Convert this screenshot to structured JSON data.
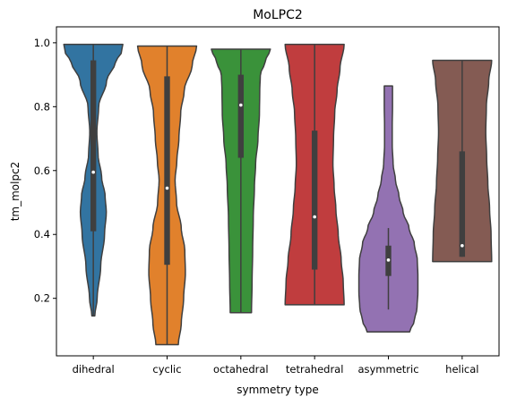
{
  "chart_data": {
    "type": "violin",
    "title": "MoLPC2",
    "xlabel": "symmetry type",
    "ylabel": "tm_molpc2",
    "ylim": [
      0.02,
      1.05
    ],
    "yticks": [
      0.2,
      0.4,
      0.6,
      0.8,
      1.0
    ],
    "ytick_labels": [
      "0.2",
      "0.4",
      "0.6",
      "0.8",
      "1.0"
    ],
    "categories": [
      "dihedral",
      "cyclic",
      "octahedral",
      "tetrahedral",
      "asymmetric",
      "helical"
    ],
    "series": [
      {
        "category": "dihedral",
        "color": "#3274a1",
        "min": 0.145,
        "q1": 0.41,
        "median": 0.595,
        "q3": 0.945,
        "max": 0.995,
        "density": [
          [
            0.145,
            0.05
          ],
          [
            0.2,
            0.13
          ],
          [
            0.3,
            0.25
          ],
          [
            0.4,
            0.38
          ],
          [
            0.47,
            0.44
          ],
          [
            0.52,
            0.4
          ],
          [
            0.58,
            0.28
          ],
          [
            0.65,
            0.16
          ],
          [
            0.72,
            0.12
          ],
          [
            0.8,
            0.18
          ],
          [
            0.88,
            0.45
          ],
          [
            0.94,
            0.75
          ],
          [
            0.97,
            0.95
          ],
          [
            0.995,
            1.0
          ]
        ]
      },
      {
        "category": "cyclic",
        "color": "#e1812c",
        "min": 0.055,
        "q1": 0.305,
        "median": 0.545,
        "q3": 0.895,
        "max": 0.99,
        "density": [
          [
            0.055,
            0.38
          ],
          [
            0.12,
            0.48
          ],
          [
            0.2,
            0.56
          ],
          [
            0.28,
            0.62
          ],
          [
            0.35,
            0.6
          ],
          [
            0.42,
            0.48
          ],
          [
            0.5,
            0.32
          ],
          [
            0.57,
            0.27
          ],
          [
            0.63,
            0.33
          ],
          [
            0.7,
            0.4
          ],
          [
            0.78,
            0.46
          ],
          [
            0.85,
            0.58
          ],
          [
            0.93,
            0.85
          ],
          [
            0.99,
            1.0
          ]
        ]
      },
      {
        "category": "octahedral",
        "color": "#3a923a",
        "min": 0.155,
        "q1": 0.64,
        "median": 0.805,
        "q3": 0.9,
        "max": 0.98,
        "density": [
          [
            0.155,
            0.36
          ],
          [
            0.25,
            0.38
          ],
          [
            0.35,
            0.4
          ],
          [
            0.45,
            0.42
          ],
          [
            0.55,
            0.46
          ],
          [
            0.62,
            0.5
          ],
          [
            0.7,
            0.58
          ],
          [
            0.78,
            0.63
          ],
          [
            0.85,
            0.64
          ],
          [
            0.9,
            0.66
          ],
          [
            0.94,
            0.82
          ],
          [
            0.98,
            1.0
          ]
        ]
      },
      {
        "category": "tetrahedral",
        "color": "#c03d3e",
        "min": 0.18,
        "q1": 0.29,
        "median": 0.455,
        "q3": 0.725,
        "max": 0.995,
        "density": [
          [
            0.18,
            1.0
          ],
          [
            0.25,
            0.97
          ],
          [
            0.32,
            0.9
          ],
          [
            0.4,
            0.8
          ],
          [
            0.48,
            0.72
          ],
          [
            0.55,
            0.66
          ],
          [
            0.62,
            0.62
          ],
          [
            0.7,
            0.64
          ],
          [
            0.78,
            0.68
          ],
          [
            0.85,
            0.76
          ],
          [
            0.92,
            0.86
          ],
          [
            0.995,
            1.0
          ]
        ]
      },
      {
        "category": "asymmetric",
        "color": "#9372b2",
        "min": 0.165,
        "q1": 0.27,
        "median": 0.32,
        "q3": 0.365,
        "max": 0.42,
        "density": [
          [
            0.095,
            0.72
          ],
          [
            0.13,
            0.88
          ],
          [
            0.17,
            0.97
          ],
          [
            0.22,
            1.0
          ],
          [
            0.27,
            1.0
          ],
          [
            0.32,
            0.98
          ],
          [
            0.37,
            0.88
          ],
          [
            0.42,
            0.7
          ],
          [
            0.47,
            0.5
          ],
          [
            0.52,
            0.36
          ],
          [
            0.57,
            0.24
          ],
          [
            0.62,
            0.16
          ],
          [
            0.68,
            0.13
          ],
          [
            0.74,
            0.13
          ],
          [
            0.8,
            0.14
          ],
          [
            0.84,
            0.14
          ],
          [
            0.865,
            0.14
          ]
        ]
      },
      {
        "category": "helical",
        "color": "#845b53",
        "min": 0.33,
        "q1": 0.33,
        "median": 0.365,
        "q3": 0.66,
        "max": 0.945,
        "density": [
          [
            0.315,
            1.0
          ],
          [
            0.4,
            0.98
          ],
          [
            0.48,
            0.93
          ],
          [
            0.56,
            0.87
          ],
          [
            0.64,
            0.83
          ],
          [
            0.72,
            0.8
          ],
          [
            0.8,
            0.82
          ],
          [
            0.88,
            0.9
          ],
          [
            0.945,
            1.0
          ]
        ]
      }
    ]
  }
}
